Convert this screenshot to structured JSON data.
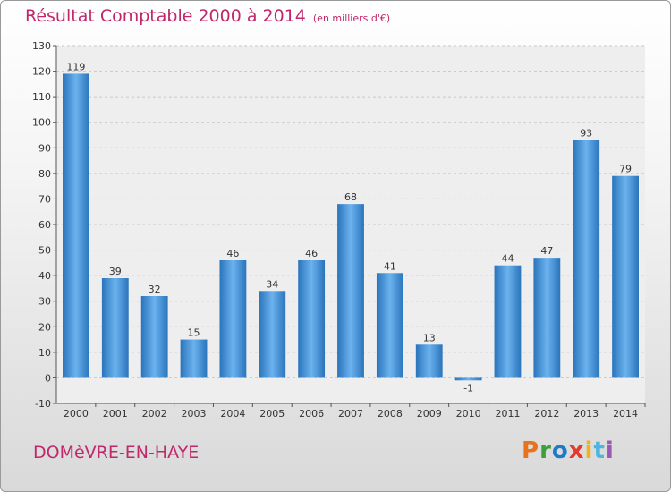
{
  "header": {
    "title": "Résultat Comptable 2000 à 2014",
    "unit": "(en milliers d'€)"
  },
  "footer": {
    "commune": "DOMèVRE-EN-HAYE",
    "logo": "Proxiti",
    "logo_colors": [
      "#e8731c",
      "#3aa03a",
      "#1f7bc8",
      "#e43a2e",
      "#f2b21b",
      "#4bb7e0",
      "#9b59b6"
    ]
  },
  "chart_data": {
    "type": "bar",
    "title": "Résultat Comptable 2000 à 2014",
    "subtitle": "(en milliers d'€)",
    "categories": [
      "2000",
      "2001",
      "2002",
      "2003",
      "2004",
      "2005",
      "2006",
      "2007",
      "2008",
      "2009",
      "2010",
      "2011",
      "2012",
      "2013",
      "2014"
    ],
    "values": [
      119,
      39,
      32,
      15,
      46,
      34,
      46,
      68,
      41,
      13,
      -1,
      44,
      47,
      93,
      79
    ],
    "ylim": [
      -10,
      130
    ],
    "yticks": [
      -10,
      0,
      10,
      20,
      30,
      40,
      50,
      60,
      70,
      80,
      90,
      100,
      110,
      120,
      130
    ],
    "grid": true,
    "bar_color": "#3d8fd6",
    "bar_color_dark": "#2a74bb",
    "bar_color_light": "#6bb2ee"
  }
}
